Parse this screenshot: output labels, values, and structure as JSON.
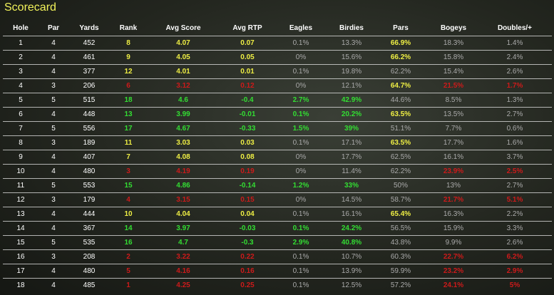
{
  "title": "Scorecard",
  "columns": [
    "Hole",
    "Par",
    "Yards",
    "Rank",
    "Avg Score",
    "Avg RTP",
    "Eagles",
    "Birdies",
    "Pars",
    "Bogeys",
    "Doubles/+"
  ],
  "rows": [
    [
      "1",
      "4",
      "452",
      "8",
      "4.07",
      "0.07",
      "0.1%",
      "13.3%",
      "66.9%",
      "18.3%",
      "1.4%"
    ],
    [
      "2",
      "4",
      "461",
      "9",
      "4.05",
      "0.05",
      "0%",
      "15.6%",
      "66.2%",
      "15.8%",
      "2.4%"
    ],
    [
      "3",
      "4",
      "377",
      "12",
      "4.01",
      "0.01",
      "0.1%",
      "19.8%",
      "62.2%",
      "15.4%",
      "2.6%"
    ],
    [
      "4",
      "3",
      "206",
      "6",
      "3.12",
      "0.12",
      "0%",
      "12.1%",
      "64.7%",
      "21.5%",
      "1.7%"
    ],
    [
      "5",
      "5",
      "515",
      "18",
      "4.6",
      "-0.4",
      "2.7%",
      "42.9%",
      "44.6%",
      "8.5%",
      "1.3%"
    ],
    [
      "6",
      "4",
      "448",
      "13",
      "3.99",
      "-0.01",
      "0.1%",
      "20.2%",
      "63.5%",
      "13.5%",
      "2.7%"
    ],
    [
      "7",
      "5",
      "556",
      "17",
      "4.67",
      "-0.33",
      "1.5%",
      "39%",
      "51.1%",
      "7.7%",
      "0.6%"
    ],
    [
      "8",
      "3",
      "189",
      "11",
      "3.03",
      "0.03",
      "0.1%",
      "17.1%",
      "63.5%",
      "17.7%",
      "1.6%"
    ],
    [
      "9",
      "4",
      "407",
      "7",
      "4.08",
      "0.08",
      "0%",
      "17.7%",
      "62.5%",
      "16.1%",
      "3.7%"
    ],
    [
      "10",
      "4",
      "480",
      "3",
      "4.19",
      "0.19",
      "0%",
      "11.4%",
      "62.2%",
      "23.9%",
      "2.5%"
    ],
    [
      "11",
      "5",
      "553",
      "15",
      "4.86",
      "-0.14",
      "1.2%",
      "33%",
      "50%",
      "13%",
      "2.7%"
    ],
    [
      "12",
      "3",
      "179",
      "4",
      "3.15",
      "0.15",
      "0%",
      "14.5%",
      "58.7%",
      "21.7%",
      "5.1%"
    ],
    [
      "13",
      "4",
      "444",
      "10",
      "4.04",
      "0.04",
      "0.1%",
      "16.1%",
      "65.4%",
      "16.3%",
      "2.2%"
    ],
    [
      "14",
      "4",
      "367",
      "14",
      "3.97",
      "-0.03",
      "0.1%",
      "24.2%",
      "56.5%",
      "15.9%",
      "3.3%"
    ],
    [
      "15",
      "5",
      "535",
      "16",
      "4.7",
      "-0.3",
      "2.9%",
      "40.8%",
      "43.8%",
      "9.9%",
      "2.6%"
    ],
    [
      "16",
      "3",
      "208",
      "2",
      "3.22",
      "0.22",
      "0.1%",
      "10.7%",
      "60.3%",
      "22.7%",
      "6.2%"
    ],
    [
      "17",
      "4",
      "480",
      "5",
      "4.16",
      "0.16",
      "0.1%",
      "13.9%",
      "59.9%",
      "23.2%",
      "2.9%"
    ],
    [
      "18",
      "4",
      "485",
      "1",
      "4.25",
      "0.25",
      "0.1%",
      "12.5%",
      "57.2%",
      "24.1%",
      "5%"
    ]
  ],
  "cell_colors": [
    [
      "#fff",
      "#fff",
      "#fff",
      "#eeee44",
      "#eeee44",
      "#eeee44",
      "#aaa",
      "#aaa",
      "#eeee44",
      "#aaa",
      "#aaa"
    ],
    [
      "#fff",
      "#fff",
      "#fff",
      "#eeee44",
      "#eeee44",
      "#eeee44",
      "#aaa",
      "#aaa",
      "#eeee44",
      "#aaa",
      "#aaa"
    ],
    [
      "#fff",
      "#fff",
      "#fff",
      "#eeee44",
      "#eeee44",
      "#eeee44",
      "#aaa",
      "#aaa",
      "#aaa",
      "#aaa",
      "#aaa"
    ],
    [
      "#fff",
      "#fff",
      "#fff",
      "#cc1a1a",
      "#cc1a1a",
      "#cc1a1a",
      "#aaa",
      "#aaa",
      "#eeee44",
      "#cc1a1a",
      "#cc1a1a"
    ],
    [
      "#fff",
      "#fff",
      "#fff",
      "#33dd33",
      "#33dd33",
      "#33dd33",
      "#33dd33",
      "#33dd33",
      "#aaa",
      "#aaa",
      "#aaa"
    ],
    [
      "#fff",
      "#fff",
      "#fff",
      "#33dd33",
      "#33dd33",
      "#33dd33",
      "#33dd33",
      "#33dd33",
      "#eeee44",
      "#aaa",
      "#aaa"
    ],
    [
      "#fff",
      "#fff",
      "#fff",
      "#33dd33",
      "#33dd33",
      "#33dd33",
      "#33dd33",
      "#33dd33",
      "#aaa",
      "#aaa",
      "#aaa"
    ],
    [
      "#fff",
      "#fff",
      "#fff",
      "#eeee44",
      "#eeee44",
      "#eeee44",
      "#aaa",
      "#aaa",
      "#eeee44",
      "#aaa",
      "#aaa"
    ],
    [
      "#fff",
      "#fff",
      "#fff",
      "#eeee44",
      "#eeee44",
      "#eeee44",
      "#aaa",
      "#aaa",
      "#aaa",
      "#aaa",
      "#aaa"
    ],
    [
      "#fff",
      "#fff",
      "#fff",
      "#cc1a1a",
      "#cc1a1a",
      "#cc1a1a",
      "#aaa",
      "#aaa",
      "#aaa",
      "#cc1a1a",
      "#cc1a1a"
    ],
    [
      "#fff",
      "#fff",
      "#fff",
      "#33dd33",
      "#33dd33",
      "#33dd33",
      "#33dd33",
      "#33dd33",
      "#aaa",
      "#aaa",
      "#aaa"
    ],
    [
      "#fff",
      "#fff",
      "#fff",
      "#cc1a1a",
      "#cc1a1a",
      "#cc1a1a",
      "#aaa",
      "#aaa",
      "#aaa",
      "#cc1a1a",
      "#cc1a1a"
    ],
    [
      "#fff",
      "#fff",
      "#fff",
      "#eeee44",
      "#eeee44",
      "#eeee44",
      "#aaa",
      "#aaa",
      "#eeee44",
      "#aaa",
      "#aaa"
    ],
    [
      "#fff",
      "#fff",
      "#fff",
      "#33dd33",
      "#33dd33",
      "#33dd33",
      "#33dd33",
      "#33dd33",
      "#aaa",
      "#aaa",
      "#aaa"
    ],
    [
      "#fff",
      "#fff",
      "#fff",
      "#33dd33",
      "#33dd33",
      "#33dd33",
      "#33dd33",
      "#33dd33",
      "#aaa",
      "#aaa",
      "#aaa"
    ],
    [
      "#fff",
      "#fff",
      "#fff",
      "#cc1a1a",
      "#cc1a1a",
      "#cc1a1a",
      "#aaa",
      "#aaa",
      "#aaa",
      "#cc1a1a",
      "#cc1a1a"
    ],
    [
      "#fff",
      "#fff",
      "#fff",
      "#cc1a1a",
      "#cc1a1a",
      "#cc1a1a",
      "#aaa",
      "#aaa",
      "#aaa",
      "#cc1a1a",
      "#cc1a1a"
    ],
    [
      "#fff",
      "#fff",
      "#fff",
      "#cc1a1a",
      "#cc1a1a",
      "#cc1a1a",
      "#aaa",
      "#aaa",
      "#aaa",
      "#cc1a1a",
      "#cc1a1a"
    ]
  ]
}
